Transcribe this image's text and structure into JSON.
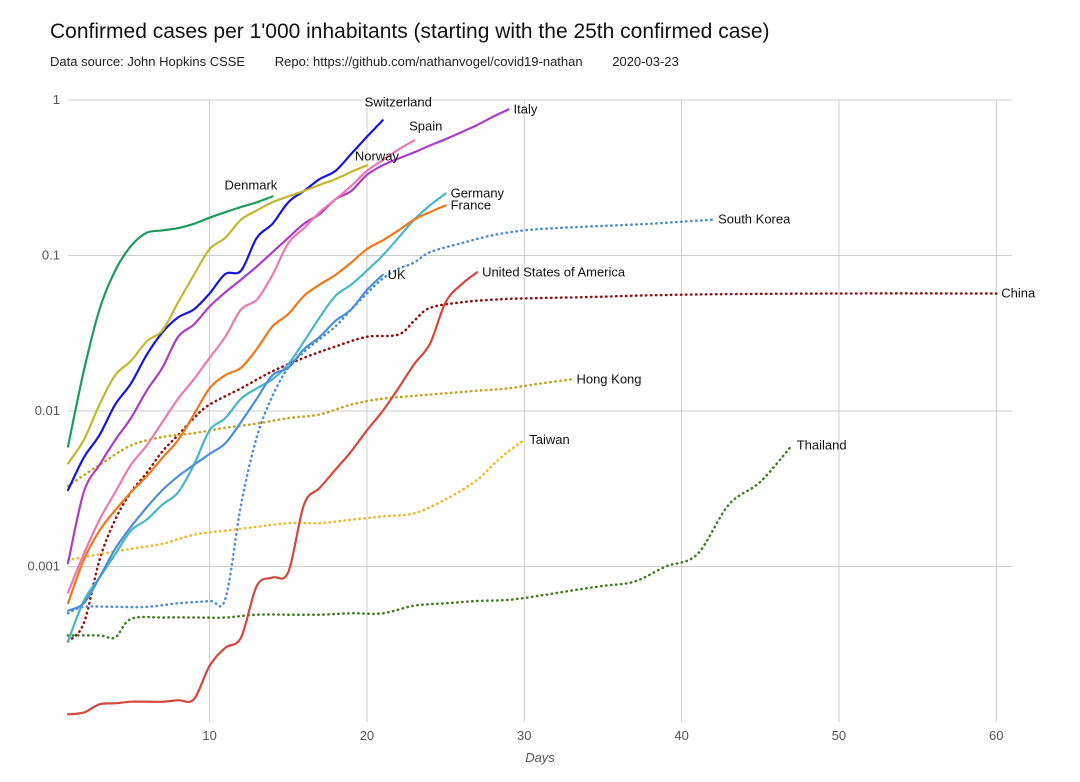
{
  "chart_data": {
    "type": "line",
    "title": "Confirmed cases per 1'000 inhabitants (starting with the 25th confirmed case)",
    "subtitle": {
      "source": "Data source: John Hopkins CSSE",
      "repo": "Repo: https://github.com/nathanvogel/covid19-nathan",
      "date": "2020-03-23"
    },
    "xlabel": "Days",
    "ylabel": "",
    "y_scale": "log",
    "xlim": [
      1,
      61
    ],
    "ylim": [
      0.0001,
      1
    ],
    "x_ticks": [
      10,
      20,
      30,
      40,
      50,
      60
    ],
    "y_ticks": [
      {
        "value": 1,
        "label": "1"
      },
      {
        "value": 0.1,
        "label": "0.1"
      },
      {
        "value": 0.01,
        "label": "0.01"
      },
      {
        "value": 0.001,
        "label": "0.001"
      }
    ],
    "grid": true,
    "series": [
      {
        "name": "Switzerland",
        "color": "#1515dd",
        "style": "solid",
        "x": [
          1,
          2,
          3,
          4,
          5,
          6,
          7,
          8,
          9,
          10,
          11,
          12,
          13,
          14,
          15,
          16,
          17,
          18,
          19,
          20,
          21
        ],
        "y": [
          0.0031,
          0.005,
          0.007,
          0.011,
          0.015,
          0.023,
          0.032,
          0.04,
          0.045,
          0.057,
          0.076,
          0.08,
          0.13,
          0.16,
          0.22,
          0.26,
          0.31,
          0.35,
          0.45,
          0.58,
          0.74
        ]
      },
      {
        "name": "Italy",
        "color": "#aa3dc6",
        "style": "solid",
        "x": [
          1,
          2,
          3,
          4,
          5,
          6,
          7,
          8,
          9,
          10,
          11,
          12,
          13,
          14,
          15,
          16,
          17,
          18,
          19,
          20,
          21,
          22,
          23,
          24,
          25,
          26,
          27,
          28,
          29
        ],
        "y": [
          0.00105,
          0.003,
          0.0045,
          0.0065,
          0.009,
          0.0135,
          0.019,
          0.03,
          0.036,
          0.047,
          0.058,
          0.07,
          0.085,
          0.105,
          0.13,
          0.16,
          0.185,
          0.23,
          0.26,
          0.33,
          0.38,
          0.42,
          0.46,
          0.51,
          0.56,
          0.62,
          0.69,
          0.78,
          0.87
        ]
      },
      {
        "name": "Spain",
        "color": "#ec7aaf",
        "style": "solid",
        "x": [
          1,
          2,
          3,
          4,
          5,
          6,
          7,
          8,
          9,
          10,
          11,
          12,
          13,
          14,
          15,
          16,
          17,
          18,
          19,
          20,
          21,
          22,
          23
        ],
        "y": [
          0.00068,
          0.0012,
          0.002,
          0.003,
          0.0045,
          0.006,
          0.0085,
          0.012,
          0.016,
          0.022,
          0.03,
          0.045,
          0.052,
          0.075,
          0.12,
          0.15,
          0.19,
          0.23,
          0.28,
          0.35,
          0.41,
          0.48,
          0.55
        ]
      },
      {
        "name": "Norway",
        "color": "#c2b830",
        "style": "solid",
        "x": [
          1,
          2,
          3,
          4,
          5,
          6,
          7,
          8,
          9,
          10,
          11,
          12,
          13,
          14,
          15,
          16,
          17,
          18,
          19,
          20
        ],
        "y": [
          0.0046,
          0.0065,
          0.011,
          0.017,
          0.021,
          0.028,
          0.033,
          0.05,
          0.075,
          0.11,
          0.13,
          0.17,
          0.195,
          0.22,
          0.24,
          0.26,
          0.285,
          0.31,
          0.345,
          0.38
        ]
      },
      {
        "name": "Denmark",
        "color": "#1f9a5f",
        "style": "solid",
        "x": [
          1,
          2,
          3,
          4,
          5,
          6,
          7,
          8,
          9,
          10,
          11,
          12,
          13,
          14
        ],
        "y": [
          0.0059,
          0.018,
          0.045,
          0.08,
          0.115,
          0.14,
          0.145,
          0.15,
          0.16,
          0.175,
          0.19,
          0.205,
          0.22,
          0.24
        ]
      },
      {
        "name": "Germany",
        "color": "#48b6c9",
        "style": "solid",
        "x": [
          1,
          2,
          3,
          4,
          5,
          6,
          7,
          8,
          9,
          10,
          11,
          12,
          13,
          14,
          15,
          16,
          17,
          18,
          19,
          20,
          21,
          22,
          23,
          24,
          25
        ],
        "y": [
          0.00033,
          0.0006,
          0.00085,
          0.0012,
          0.0017,
          0.002,
          0.0025,
          0.003,
          0.0045,
          0.0075,
          0.009,
          0.012,
          0.014,
          0.016,
          0.02,
          0.028,
          0.04,
          0.055,
          0.065,
          0.08,
          0.1,
          0.13,
          0.17,
          0.21,
          0.25
        ]
      },
      {
        "name": "France",
        "color": "#f07817",
        "style": "solid",
        "x": [
          1,
          2,
          3,
          4,
          5,
          6,
          7,
          8,
          9,
          10,
          11,
          12,
          13,
          14,
          15,
          16,
          17,
          18,
          19,
          20,
          21,
          22,
          23,
          24,
          25
        ],
        "y": [
          0.00058,
          0.0011,
          0.0017,
          0.0023,
          0.003,
          0.0038,
          0.005,
          0.0065,
          0.0095,
          0.014,
          0.017,
          0.019,
          0.025,
          0.035,
          0.042,
          0.055,
          0.065,
          0.075,
          0.09,
          0.11,
          0.125,
          0.145,
          0.17,
          0.19,
          0.21
        ]
      },
      {
        "name": "UK",
        "color": "#4b8fdc",
        "style": "solid",
        "x": [
          1,
          2,
          3,
          4,
          5,
          6,
          7,
          8,
          9,
          10,
          11,
          12,
          13,
          14,
          15,
          16,
          17,
          18,
          19,
          20,
          21
        ],
        "y": [
          0.00052,
          0.00058,
          0.00085,
          0.0013,
          0.0018,
          0.0024,
          0.0031,
          0.0038,
          0.0045,
          0.0053,
          0.0062,
          0.0085,
          0.012,
          0.017,
          0.019,
          0.025,
          0.03,
          0.038,
          0.045,
          0.06,
          0.075
        ]
      },
      {
        "name": "United States of America",
        "color": "#d5463b",
        "style": "solid",
        "x": [
          1,
          2,
          3,
          4,
          5,
          6,
          7,
          8,
          9,
          10,
          11,
          12,
          13,
          14,
          15,
          16,
          17,
          18,
          19,
          20,
          21,
          22,
          23,
          24,
          25,
          26,
          27
        ],
        "y": [
          0.000112,
          0.000115,
          0.00013,
          0.000132,
          0.000135,
          0.000135,
          0.000135,
          0.000138,
          0.00014,
          0.00023,
          0.0003,
          0.00035,
          0.00075,
          0.00085,
          0.00092,
          0.0025,
          0.0032,
          0.0042,
          0.0055,
          0.0075,
          0.01,
          0.014,
          0.02,
          0.027,
          0.05,
          0.065,
          0.078
        ]
      },
      {
        "name": "China",
        "color": "#8f1010",
        "style": "dotted",
        "x": [
          1,
          2,
          3,
          4,
          5,
          6,
          7,
          8,
          9,
          10,
          12,
          14,
          16,
          18,
          20,
          22,
          23,
          24,
          26,
          28,
          30,
          34,
          40,
          50,
          60
        ],
        "y": [
          0.00033,
          0.00043,
          0.0011,
          0.002,
          0.003,
          0.004,
          0.0055,
          0.007,
          0.009,
          0.011,
          0.014,
          0.018,
          0.022,
          0.026,
          0.03,
          0.031,
          0.038,
          0.046,
          0.05,
          0.052,
          0.053,
          0.054,
          0.056,
          0.057,
          0.057
        ]
      },
      {
        "name": "South Korea",
        "color": "#4c8ed0",
        "style": "dotted",
        "x": [
          1,
          2,
          4,
          6,
          8,
          10,
          11,
          12,
          13,
          14,
          15,
          16,
          17,
          18,
          19,
          20,
          21,
          22,
          23,
          24,
          26,
          28,
          30,
          32,
          35,
          38,
          40,
          42
        ],
        "y": [
          0.0005,
          0.00055,
          0.00055,
          0.00055,
          0.00058,
          0.0006,
          0.00062,
          0.0025,
          0.0068,
          0.0125,
          0.019,
          0.024,
          0.029,
          0.035,
          0.045,
          0.057,
          0.071,
          0.082,
          0.09,
          0.105,
          0.12,
          0.135,
          0.145,
          0.15,
          0.155,
          0.16,
          0.165,
          0.17
        ]
      },
      {
        "name": "Hong Kong",
        "color": "#c8a01e",
        "style": "dotted",
        "x": [
          1,
          3,
          5,
          7,
          9,
          11,
          13,
          15,
          17,
          19,
          21,
          23,
          25,
          27,
          29,
          31,
          33
        ],
        "y": [
          0.0033,
          0.0045,
          0.006,
          0.0068,
          0.0072,
          0.0078,
          0.0083,
          0.009,
          0.0095,
          0.011,
          0.012,
          0.0125,
          0.013,
          0.0135,
          0.014,
          0.015,
          0.016
        ]
      },
      {
        "name": "Taiwan",
        "color": "#f0b72d",
        "style": "dotted",
        "x": [
          1,
          3,
          5,
          7,
          9,
          11,
          13,
          15,
          17,
          19,
          21,
          23,
          25,
          27,
          28,
          29,
          30
        ],
        "y": [
          0.0011,
          0.0012,
          0.0013,
          0.0014,
          0.0016,
          0.0017,
          0.0018,
          0.0019,
          0.0019,
          0.002,
          0.0021,
          0.0022,
          0.0027,
          0.0036,
          0.0045,
          0.0055,
          0.0065
        ]
      },
      {
        "name": "Thailand",
        "color": "#3f7f1f",
        "style": "dotted",
        "x": [
          1,
          3,
          4,
          5,
          7,
          9,
          11,
          13,
          15,
          17,
          19,
          21,
          23,
          25,
          27,
          29,
          31,
          33,
          35,
          37,
          39,
          41,
          43,
          45,
          47
        ],
        "y": [
          0.00036,
          0.00036,
          0.00035,
          0.00046,
          0.00047,
          0.00047,
          0.00047,
          0.00049,
          0.00049,
          0.00049,
          0.0005,
          0.0005,
          0.00056,
          0.00058,
          0.0006,
          0.00061,
          0.00065,
          0.0007,
          0.00075,
          0.0008,
          0.001,
          0.0012,
          0.0025,
          0.0035,
          0.006
        ]
      }
    ]
  }
}
